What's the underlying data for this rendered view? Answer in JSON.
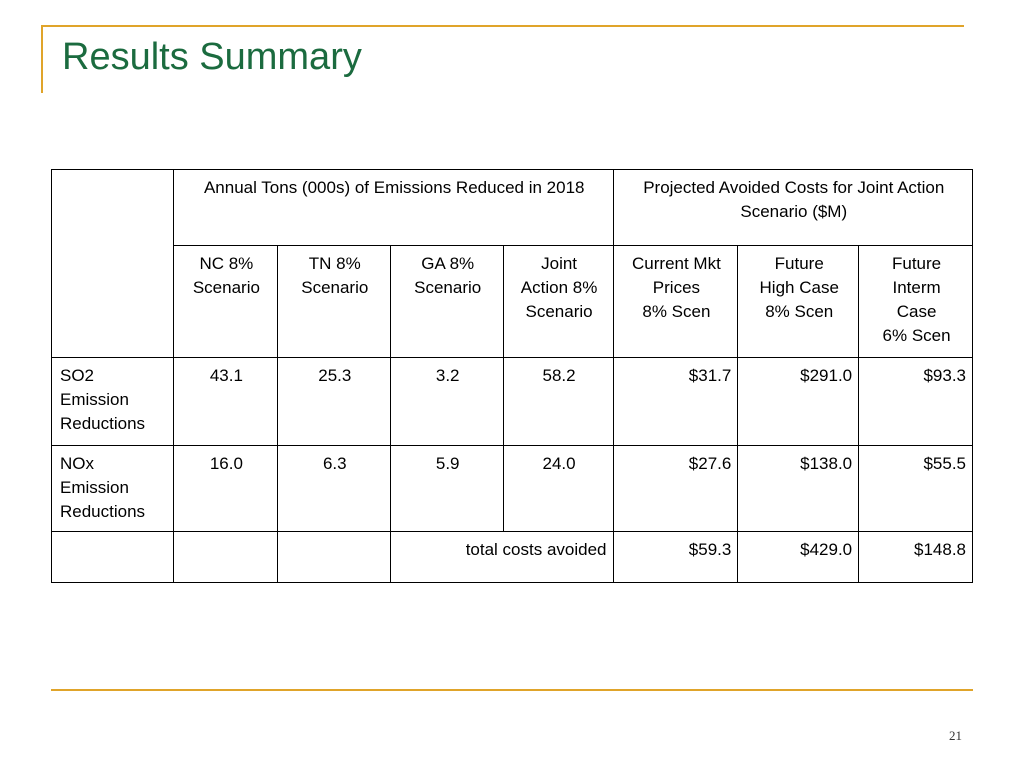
{
  "slide": {
    "title": "Results Summary",
    "page_number": "21"
  },
  "table": {
    "group_headers": {
      "emissions": "Annual Tons (000s) of Emissions Reduced in 2018",
      "costs": "Projected Avoided Costs for Joint Action Scenario ($M)"
    },
    "columns": [
      {
        "line1": "NC 8%",
        "line2": "Scenario",
        "line3": "",
        "line4": ""
      },
      {
        "line1": "TN 8%",
        "line2": "Scenario",
        "line3": "",
        "line4": ""
      },
      {
        "line1": "GA 8%",
        "line2": "Scenario",
        "line3": "",
        "line4": ""
      },
      {
        "line1": "Joint",
        "line2": "Action 8%",
        "line3": "Scenario",
        "line4": ""
      },
      {
        "line1": "Current Mkt",
        "line2": "Prices",
        "line3": "8% Scen",
        "line4": ""
      },
      {
        "line1": "Future",
        "line2": "High Case",
        "line3": "8% Scen",
        "line4": ""
      },
      {
        "line1": "Future",
        "line2": "Interm",
        "line3": "Case",
        "line4": "6% Scen"
      }
    ],
    "rows": [
      {
        "label_line1": "SO2",
        "label_line2": "Emission",
        "label_line3": "Reductions",
        "values": [
          "43.1",
          "25.3",
          "3.2",
          "58.2",
          "$31.7",
          "$291.0",
          "$93.3"
        ]
      },
      {
        "label_line1": "NOx",
        "label_line2": "Emission",
        "label_line3": "Reductions",
        "values": [
          "16.0",
          "6.3",
          "5.9",
          "24.0",
          "$27.6",
          "$138.0",
          "$55.5"
        ]
      }
    ],
    "total_row": {
      "label": "total costs avoided",
      "values": [
        "$59.3",
        "$429.0",
        "$148.8"
      ]
    }
  }
}
